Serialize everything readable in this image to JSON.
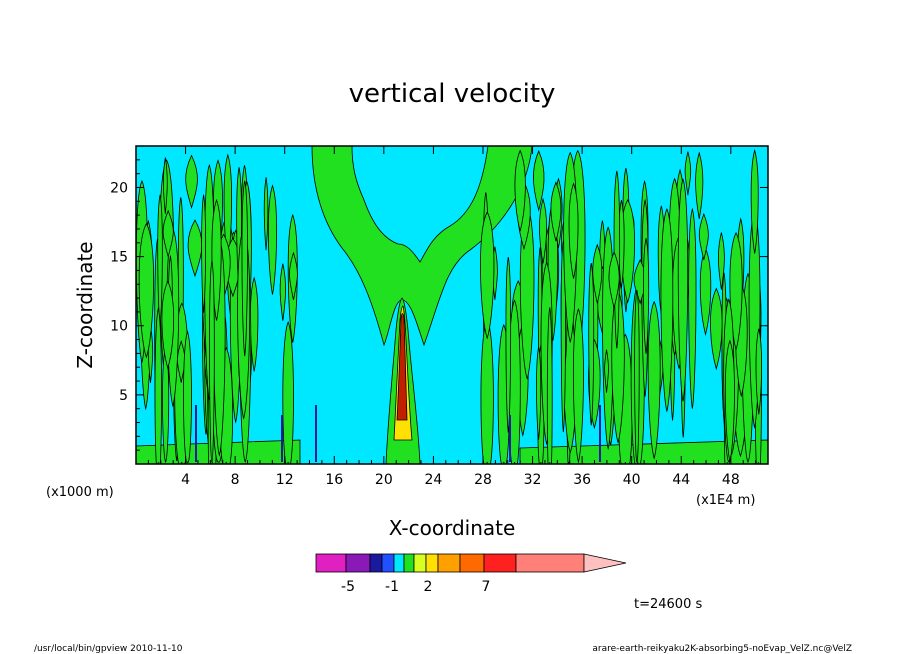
{
  "chart_data": {
    "type": "heatmap",
    "title": "vertical velocity",
    "xlabel": "X-coordinate",
    "ylabel": "Z-coordinate",
    "x_unit_left": "(x1000 m)",
    "x_unit_right": "(x1E4 m)",
    "xlim": [
      0,
      51
    ],
    "ylim": [
      0,
      23
    ],
    "x_ticks": [
      "4",
      "8",
      "12",
      "16",
      "20",
      "24",
      "28",
      "32",
      "36",
      "40",
      "44",
      "48"
    ],
    "x_tick_values": [
      4,
      8,
      12,
      16,
      20,
      24,
      28,
      32,
      36,
      40,
      44,
      48
    ],
    "y_ticks": [
      "5",
      "10",
      "15",
      "20"
    ],
    "y_tick_values": [
      5,
      10,
      15,
      20
    ],
    "colorbar": {
      "labels": [
        "-5",
        "-1",
        "2",
        "7"
      ],
      "label_values": [
        -5,
        -1,
        2,
        7
      ],
      "bins": [
        {
          "color": "#e020c0"
        },
        {
          "color": "#8a1ab8"
        },
        {
          "color": "#1a1aa0"
        },
        {
          "color": "#2050ff"
        },
        {
          "color": "#00e8ff"
        },
        {
          "color": "#20e020"
        },
        {
          "color": "#d8ff20"
        },
        {
          "color": "#ffe000"
        },
        {
          "color": "#ffa000"
        },
        {
          "color": "#ff6a00"
        },
        {
          "color": "#ff2020"
        },
        {
          "color": "#ff8078"
        }
      ],
      "overflow_color": "#ffc0c0"
    },
    "background_color": "#00e8ff",
    "positive_color": "#20e020",
    "core_color": "#c02000",
    "updraft_color": "#ffe000",
    "grid": false
  },
  "time_label": "t=24600 s",
  "footer_left": "/usr/local/bin/gpview  2010-11-10",
  "footer_right": "arare-earth-reikyaku2K-absorbing5-noEvap_VelZ.nc@VelZ"
}
